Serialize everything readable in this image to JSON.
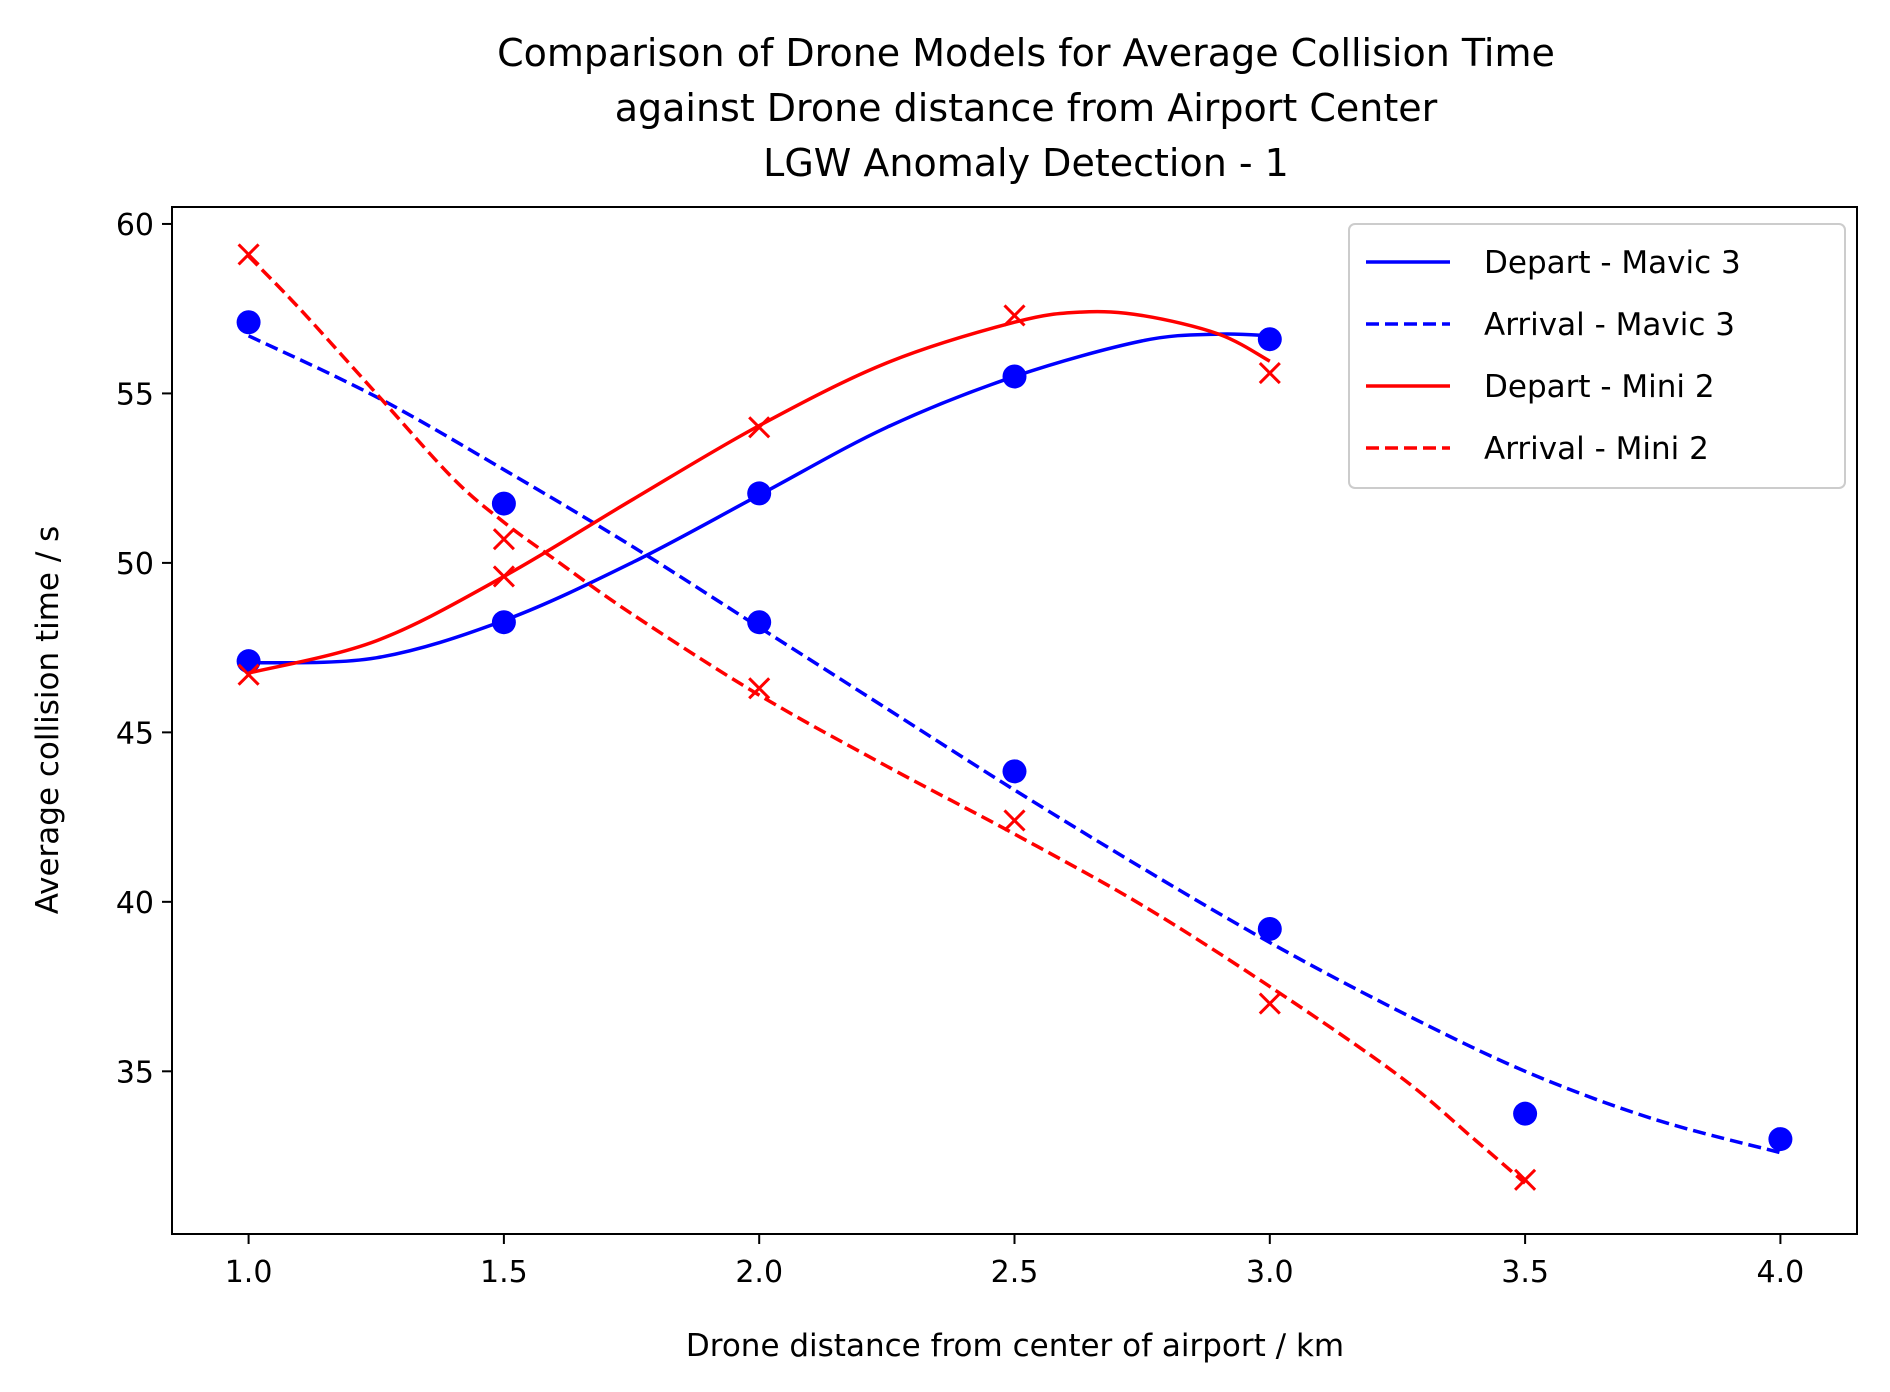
{
  "chart_data": {
    "type": "line",
    "title_lines": [
      "Comparison of Drone Models for Average Collision Time",
      "against Drone distance from Airport Center",
      "LGW Anomaly Detection - 1"
    ],
    "xlabel": "Drone distance from center of airport / km",
    "ylabel": "Average collision time / s",
    "xlim": [
      0.85,
      4.15
    ],
    "ylim": [
      30.2,
      60.5
    ],
    "x_ticks": [
      1.0,
      1.5,
      2.0,
      2.5,
      3.0,
      3.5,
      4.0
    ],
    "x_tick_labels": [
      "1.0",
      "1.5",
      "2.0",
      "2.5",
      "3.0",
      "3.5",
      "4.0"
    ],
    "y_ticks": [
      35,
      40,
      45,
      50,
      55,
      60
    ],
    "y_tick_labels": [
      "35",
      "40",
      "45",
      "50",
      "55",
      "60"
    ],
    "grid": false,
    "legend_position": "top-right",
    "series": [
      {
        "name": "Depart - Mavic 3",
        "color": "#0000ff",
        "linestyle": "solid",
        "marker": "circle",
        "points": [
          [
            1.0,
            47.1
          ],
          [
            1.5,
            48.25
          ],
          [
            2.0,
            52.05
          ],
          [
            2.5,
            55.5
          ],
          [
            3.0,
            56.6
          ]
        ],
        "fit": [
          [
            1.0,
            47.05
          ],
          [
            1.25,
            47.2
          ],
          [
            1.5,
            48.3
          ],
          [
            1.75,
            50.0
          ],
          [
            2.0,
            52.0
          ],
          [
            2.25,
            54.0
          ],
          [
            2.5,
            55.5
          ],
          [
            2.75,
            56.55
          ],
          [
            2.9,
            56.75
          ],
          [
            3.0,
            56.7
          ]
        ]
      },
      {
        "name": "Arrival - Mavic 3",
        "color": "#0000ff",
        "linestyle": "dashed",
        "marker": "circle",
        "points": [
          [
            1.0,
            57.1
          ],
          [
            1.5,
            51.75
          ],
          [
            2.0,
            48.25
          ],
          [
            2.5,
            43.85
          ],
          [
            3.0,
            39.2
          ],
          [
            3.5,
            33.75
          ],
          [
            4.0,
            33.0
          ]
        ],
        "fit": [
          [
            1.0,
            56.7
          ],
          [
            1.25,
            54.9
          ],
          [
            1.5,
            52.75
          ],
          [
            1.75,
            50.5
          ],
          [
            2.0,
            48.1
          ],
          [
            2.25,
            45.7
          ],
          [
            2.5,
            43.3
          ],
          [
            2.75,
            41.0
          ],
          [
            3.0,
            38.8
          ],
          [
            3.25,
            36.8
          ],
          [
            3.5,
            35.0
          ],
          [
            3.75,
            33.6
          ],
          [
            4.0,
            32.6
          ]
        ]
      },
      {
        "name": "Depart - Mini 2",
        "color": "#ff0000",
        "linestyle": "solid",
        "marker": "x",
        "points": [
          [
            1.0,
            46.7
          ],
          [
            1.5,
            49.6
          ],
          [
            2.0,
            54.0
          ],
          [
            2.5,
            57.3
          ],
          [
            3.0,
            55.6
          ]
        ],
        "fit": [
          [
            1.0,
            46.75
          ],
          [
            1.25,
            47.7
          ],
          [
            1.5,
            49.6
          ],
          [
            1.75,
            51.85
          ],
          [
            2.0,
            54.05
          ],
          [
            2.25,
            55.9
          ],
          [
            2.5,
            57.1
          ],
          [
            2.63,
            57.4
          ],
          [
            2.75,
            57.3
          ],
          [
            2.9,
            56.75
          ],
          [
            3.0,
            55.95
          ]
        ]
      },
      {
        "name": "Arrival - Mini 2",
        "color": "#ff0000",
        "linestyle": "dashed",
        "marker": "x",
        "points": [
          [
            1.0,
            59.1
          ],
          [
            1.5,
            50.7
          ],
          [
            2.0,
            46.3
          ],
          [
            2.5,
            42.4
          ],
          [
            3.0,
            37.0
          ],
          [
            3.5,
            31.8
          ]
        ],
        "fit": [
          [
            1.0,
            59.05
          ],
          [
            1.1,
            57.5
          ],
          [
            1.25,
            55.0
          ],
          [
            1.4,
            52.5
          ],
          [
            1.5,
            51.2
          ],
          [
            1.6,
            50.1
          ],
          [
            1.75,
            48.5
          ],
          [
            2.0,
            46.1
          ],
          [
            2.25,
            44.0
          ],
          [
            2.5,
            42.0
          ],
          [
            2.75,
            39.9
          ],
          [
            3.0,
            37.5
          ],
          [
            3.25,
            34.9
          ],
          [
            3.4,
            33.0
          ],
          [
            3.5,
            31.7
          ]
        ]
      }
    ]
  }
}
